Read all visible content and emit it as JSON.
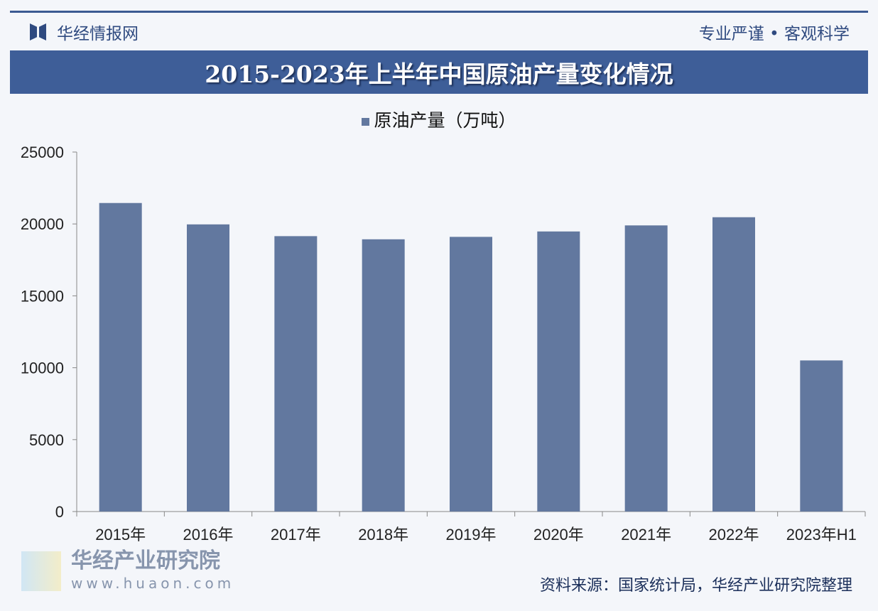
{
  "header": {
    "brand": "华经情报网",
    "motto": "专业严谨 • 客观科学"
  },
  "watermark": {
    "text": "华经产业研究院",
    "url": "www.huaon.com"
  },
  "footer": {
    "source": "资料来源：国家统计局，华经产业研究院整理"
  },
  "chart_data": {
    "type": "bar",
    "title": "2015-2023年上半年中国原油产量变化情况",
    "categories": [
      "2015年",
      "2016年",
      "2017年",
      "2018年",
      "2019年",
      "2020年",
      "2021年",
      "2022年",
      "2023年H1"
    ],
    "series": [
      {
        "name": "原油产量（万吨）",
        "values": [
          21456,
          19969,
          19151,
          18932,
          19101,
          19477,
          19898,
          20467,
          10507
        ],
        "color": "#62789f"
      }
    ],
    "ylim": [
      0,
      25000
    ],
    "yticks": [
      "0",
      "5000",
      "10000",
      "15000",
      "20000",
      "25000"
    ],
    "legend": "top-center",
    "grid": false
  }
}
